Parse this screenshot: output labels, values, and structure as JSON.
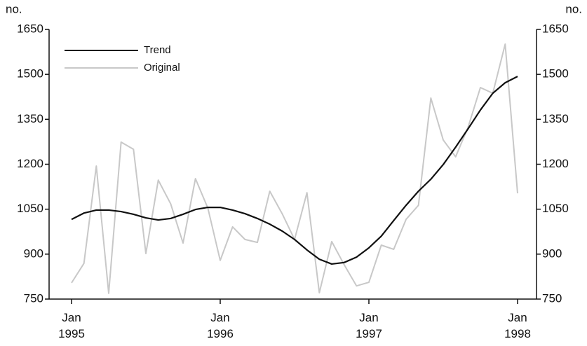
{
  "chart_data": {
    "type": "line",
    "y_label": "no.",
    "y2_label": "no.",
    "x": [
      "1995-01",
      "1995-02",
      "1995-03",
      "1995-04",
      "1995-05",
      "1995-06",
      "1995-07",
      "1995-08",
      "1995-09",
      "1995-10",
      "1995-11",
      "1995-12",
      "1996-01",
      "1996-02",
      "1996-03",
      "1996-04",
      "1996-05",
      "1996-06",
      "1996-07",
      "1996-08",
      "1996-09",
      "1996-10",
      "1996-11",
      "1996-12",
      "1997-01",
      "1997-02",
      "1997-03",
      "1997-04",
      "1997-05",
      "1997-06",
      "1997-07",
      "1997-08",
      "1997-09",
      "1997-10",
      "1997-11",
      "1997-12",
      "1998-01"
    ],
    "xticks": [
      {
        "value": "1995-01",
        "label": "Jan 1995"
      },
      {
        "value": "1996-01",
        "label": "Jan 1996"
      },
      {
        "value": "1997-01",
        "label": "Jan 1997"
      },
      {
        "value": "1998-01",
        "label": "Jan 1998"
      }
    ],
    "series": [
      {
        "name": "Trend",
        "color": "#111111",
        "values": [
          1016,
          1037,
          1047,
          1047,
          1042,
          1033,
          1021,
          1014,
          1019,
          1033,
          1049,
          1056,
          1056,
          1047,
          1035,
          1019,
          1000,
          977,
          949,
          914,
          883,
          867,
          872,
          890,
          921,
          960,
          1012,
          1063,
          1110,
          1150,
          1199,
          1257,
          1318,
          1381,
          1437,
          1472,
          1493
        ]
      },
      {
        "name": "Original",
        "color": "#c8c8c8",
        "values": [
          804,
          869,
          1194,
          769,
          1274,
          1250,
          902,
          1147,
          1068,
          937,
          1152,
          1054,
          879,
          991,
          949,
          939,
          1110,
          1035,
          949,
          1105,
          771,
          942,
          865,
          794,
          806,
          930,
          916,
          1016,
          1063,
          1421,
          1281,
          1225,
          1323,
          1456,
          1437,
          1601,
          1103
        ]
      }
    ],
    "ylim": [
      750,
      1650
    ],
    "yticks": [
      750,
      900,
      1050,
      1200,
      1350,
      1500,
      1650
    ],
    "y2lim": [
      750,
      1650
    ],
    "y2ticks": [
      750,
      900,
      1050,
      1200,
      1350,
      1500,
      1650
    ],
    "legend": "top-left"
  }
}
